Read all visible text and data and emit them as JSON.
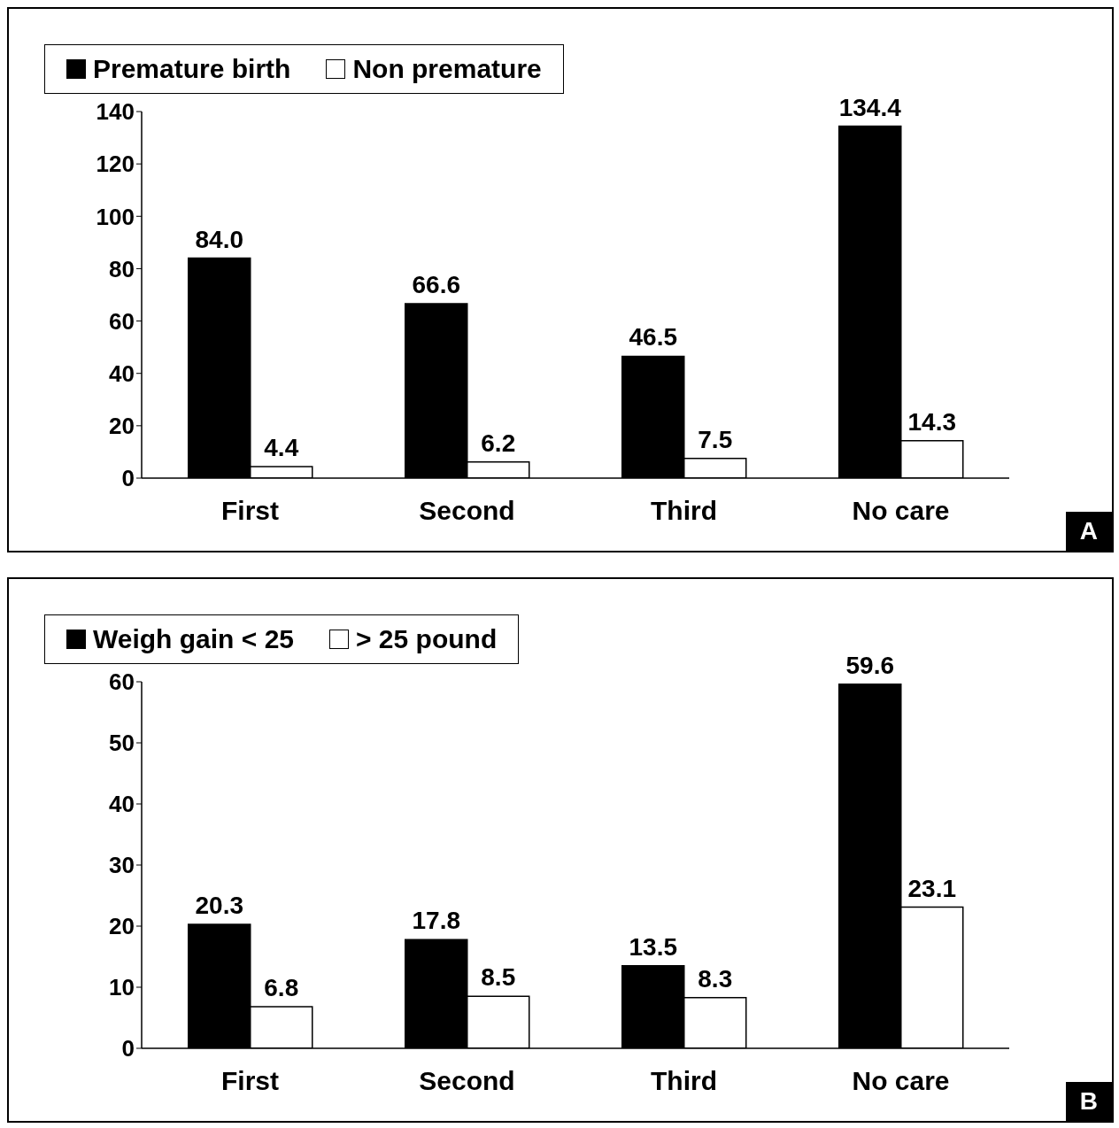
{
  "chart_data": [
    {
      "type": "bar",
      "categories": [
        "First",
        "Second",
        "Third",
        "No care"
      ],
      "series": [
        {
          "name": "Premature birth",
          "color": "#000000",
          "values": [
            84.0,
            66.6,
            46.5,
            134.4
          ],
          "value_labels": [
            "84.0",
            "66.6",
            "46.5",
            "134.4"
          ]
        },
        {
          "name": "Non premature",
          "color": "#ffffff",
          "values": [
            4.4,
            6.2,
            7.5,
            14.3
          ]
        }
      ],
      "ylim": [
        0,
        140
      ],
      "yticks": [
        0,
        20,
        40,
        60,
        80,
        100,
        120,
        140
      ],
      "grid": false,
      "legend": "top",
      "data_labels": true,
      "annotations": [
        "A"
      ]
    },
    {
      "type": "bar",
      "categories": [
        "First",
        "Second",
        "Third",
        "No care"
      ],
      "series": [
        {
          "name": "Weigh gain < 25",
          "color": "#000000",
          "values": [
            20.3,
            17.8,
            13.5,
            59.6
          ]
        },
        {
          "name": "> 25 pound",
          "color": "#ffffff",
          "values": [
            6.8,
            8.5,
            8.3,
            23.1
          ]
        }
      ],
      "ylim": [
        0,
        60
      ],
      "yticks": [
        0,
        10,
        20,
        30,
        40,
        50,
        60
      ],
      "grid": false,
      "legend": "top",
      "data_labels": true,
      "annotations": [
        "B"
      ]
    }
  ]
}
